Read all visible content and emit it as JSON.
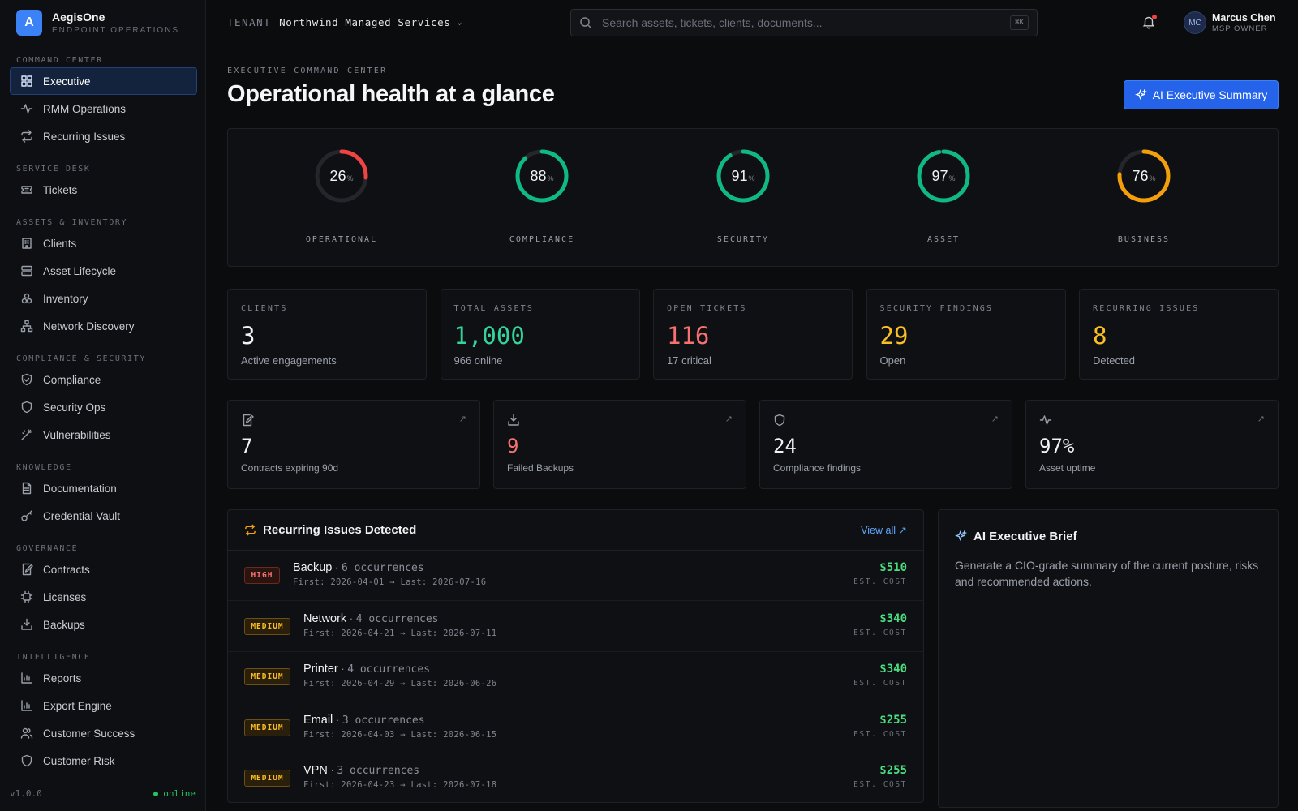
{
  "brand": {
    "logo_letter": "A",
    "name": "AegisOne",
    "subtitle": "ENDPOINT OPERATIONS"
  },
  "sidebar": {
    "sections": [
      {
        "title": "COMMAND CENTER",
        "items": [
          {
            "label": "Executive",
            "icon": "grid-icon",
            "active": true
          },
          {
            "label": "RMM Operations",
            "icon": "activity-icon"
          },
          {
            "label": "Recurring Issues",
            "icon": "repeat-icon"
          }
        ]
      },
      {
        "title": "SERVICE DESK",
        "items": [
          {
            "label": "Tickets",
            "icon": "ticket-icon"
          }
        ]
      },
      {
        "title": "ASSETS & INVENTORY",
        "items": [
          {
            "label": "Clients",
            "icon": "building-icon"
          },
          {
            "label": "Asset Lifecycle",
            "icon": "server-icon"
          },
          {
            "label": "Inventory",
            "icon": "boxes-icon"
          },
          {
            "label": "Network Discovery",
            "icon": "network-icon"
          }
        ]
      },
      {
        "title": "COMPLIANCE & SECURITY",
        "items": [
          {
            "label": "Compliance",
            "icon": "shield-check-icon"
          },
          {
            "label": "Security Ops",
            "icon": "shield-icon"
          },
          {
            "label": "Vulnerabilities",
            "icon": "wand-icon"
          }
        ]
      },
      {
        "title": "KNOWLEDGE",
        "items": [
          {
            "label": "Documentation",
            "icon": "document-icon"
          },
          {
            "label": "Credential Vault",
            "icon": "key-icon"
          }
        ]
      },
      {
        "title": "GOVERNANCE",
        "items": [
          {
            "label": "Contracts",
            "icon": "edit-document-icon"
          },
          {
            "label": "Licenses",
            "icon": "chip-icon"
          },
          {
            "label": "Backups",
            "icon": "download-tray-icon"
          }
        ]
      },
      {
        "title": "INTELLIGENCE",
        "items": [
          {
            "label": "Reports",
            "icon": "bar-chart-icon"
          },
          {
            "label": "Export Engine",
            "icon": "bar-chart-icon"
          },
          {
            "label": "Customer Success",
            "icon": "users-icon"
          },
          {
            "label": "Customer Risk",
            "icon": "shield-icon"
          }
        ]
      }
    ],
    "version": "v1.0.0",
    "status": "online"
  },
  "topbar": {
    "tenant_label": "TENANT",
    "tenant_name": "Northwind Managed Services",
    "search_placeholder": "Search assets, tickets, clients, documents...",
    "search_shortcut": "⌘K",
    "user": {
      "initials": "MC",
      "name": "Marcus Chen",
      "role": "MSP OWNER"
    }
  },
  "header": {
    "eyebrow": "EXECUTIVE COMMAND CENTER",
    "title": "Operational health at a glance",
    "ai_button": "AI Executive Summary"
  },
  "gauges": [
    {
      "label": "OPERATIONAL",
      "value": 26,
      "unit": "%",
      "color": "#ef4444"
    },
    {
      "label": "COMPLIANCE",
      "value": 88,
      "unit": "%",
      "color": "#10b981"
    },
    {
      "label": "SECURITY",
      "value": 91,
      "unit": "%",
      "color": "#10b981"
    },
    {
      "label": "ASSET",
      "value": 97,
      "unit": "%",
      "color": "#10b981"
    },
    {
      "label": "BUSINESS",
      "value": 76,
      "unit": "%",
      "color": "#f59e0b"
    }
  ],
  "kpis": [
    {
      "label": "CLIENTS",
      "value": "3",
      "sub": "Active engagements",
      "color": "#f1f2f4"
    },
    {
      "label": "TOTAL ASSETS",
      "value": "1,000",
      "sub": "966 online",
      "color": "#34d399"
    },
    {
      "label": "OPEN TICKETS",
      "value": "116",
      "sub": "17 critical",
      "color": "#f87171"
    },
    {
      "label": "SECURITY FINDINGS",
      "value": "29",
      "sub": "Open",
      "color": "#fbbf24"
    },
    {
      "label": "RECURRING ISSUES",
      "value": "8",
      "sub": "Detected",
      "color": "#fbbf24"
    }
  ],
  "minis": [
    {
      "icon": "edit-document-icon",
      "value": "7",
      "label": "Contracts expiring 90d",
      "color": "#f1f2f4"
    },
    {
      "icon": "download-tray-icon",
      "value": "9",
      "label": "Failed Backups",
      "color": "#f87171"
    },
    {
      "icon": "shield-icon",
      "value": "24",
      "label": "Compliance findings",
      "color": "#f1f2f4"
    },
    {
      "icon": "activity-icon",
      "value": "97%",
      "label": "Asset uptime",
      "color": "#f1f2f4"
    }
  ],
  "recurring": {
    "title": "Recurring Issues Detected",
    "view_all": "View all",
    "cost_label": "EST. COST",
    "rows": [
      {
        "severity": "HIGH",
        "name": "Backup",
        "occurrences": "6 occurrences",
        "first": "2026-04-01",
        "last": "2026-07-16",
        "cost": "$510"
      },
      {
        "severity": "MEDIUM",
        "name": "Network",
        "occurrences": "4 occurrences",
        "first": "2026-04-21",
        "last": "2026-07-11",
        "cost": "$340"
      },
      {
        "severity": "MEDIUM",
        "name": "Printer",
        "occurrences": "4 occurrences",
        "first": "2026-04-29",
        "last": "2026-06-26",
        "cost": "$340"
      },
      {
        "severity": "MEDIUM",
        "name": "Email",
        "occurrences": "3 occurrences",
        "first": "2026-04-03",
        "last": "2026-06-15",
        "cost": "$255"
      },
      {
        "severity": "MEDIUM",
        "name": "VPN",
        "occurrences": "3 occurrences",
        "first": "2026-04-23",
        "last": "2026-07-18",
        "cost": "$255"
      }
    ]
  },
  "brief": {
    "title": "AI Executive Brief",
    "text": "Generate a CIO-grade summary of the current posture, risks and recommended actions."
  }
}
